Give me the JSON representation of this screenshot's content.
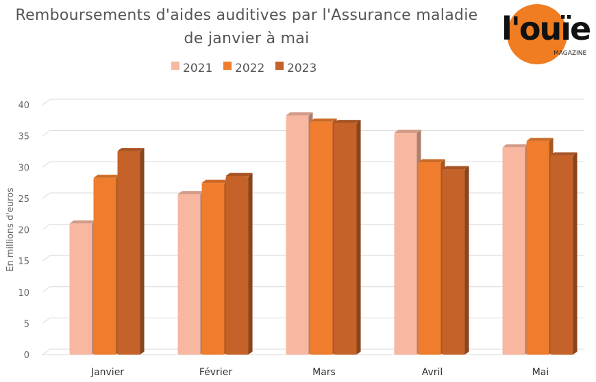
{
  "title_line1": "Remboursements d'aides auditives par l'Assurance maladie",
  "title_line2": "de janvier à mai",
  "logo": {
    "text_main": "l'ouïe",
    "text_sub": "MAGAZINE",
    "color": "#f07d22"
  },
  "chart_data": {
    "type": "bar",
    "categories": [
      "Janvier",
      "Février",
      "Mars",
      "Avril",
      "Mai"
    ],
    "series": [
      {
        "name": "2021",
        "color": "#f7b7a0",
        "values": [
          21.0,
          25.7,
          38.3,
          35.5,
          33.2
        ]
      },
      {
        "name": "2022",
        "color": "#ef7d2d",
        "values": [
          28.3,
          27.5,
          37.3,
          30.8,
          34.2
        ]
      },
      {
        "name": "2023",
        "color": "#c4622a",
        "values": [
          32.6,
          28.6,
          37.1,
          29.7,
          31.9
        ]
      }
    ],
    "ylabel": "En millions d'euros",
    "ylim": [
      0,
      40
    ],
    "yticks": [
      0,
      5,
      10,
      15,
      20,
      25,
      30,
      35,
      40
    ],
    "legend_position": "top",
    "grid": true
  }
}
